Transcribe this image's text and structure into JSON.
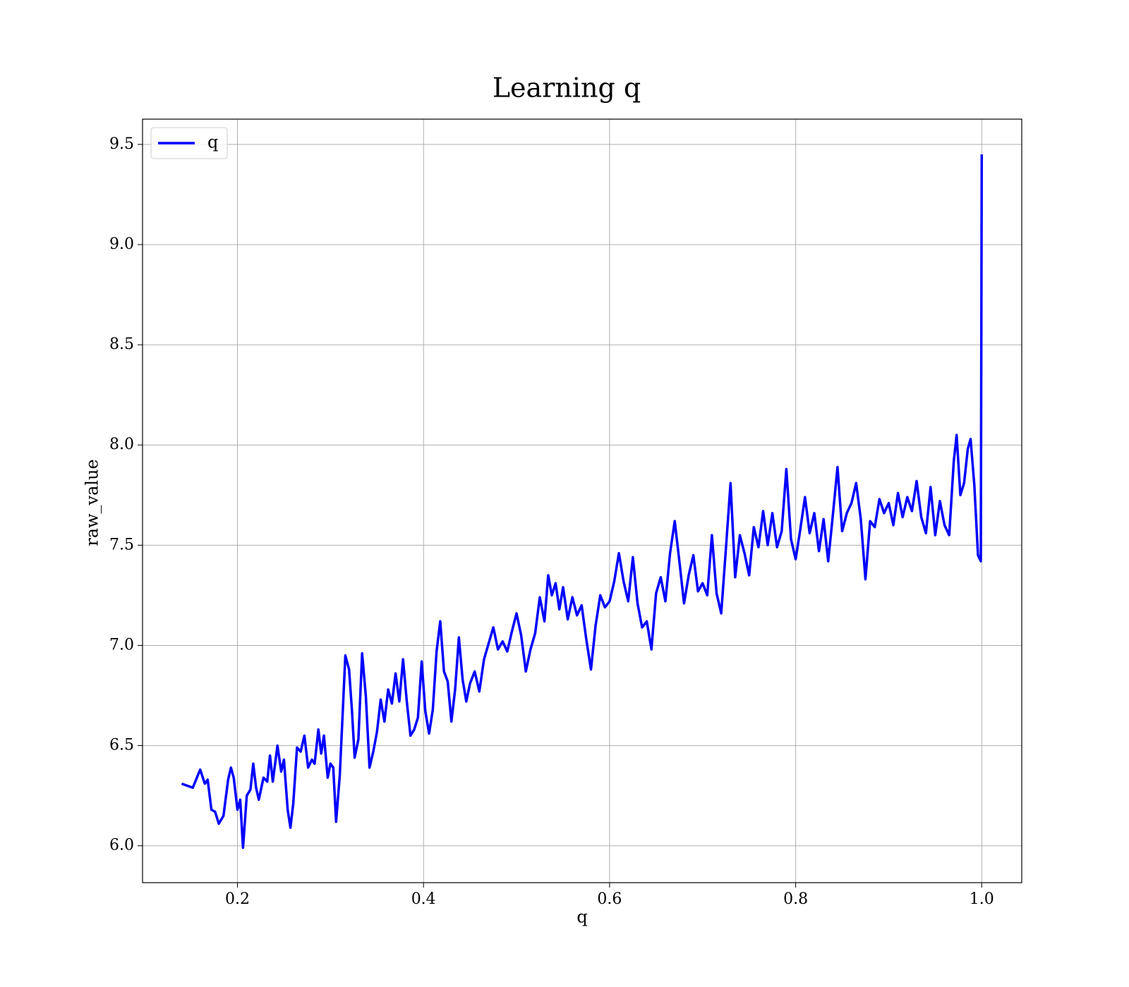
{
  "chart_data": {
    "type": "line",
    "title": "Learning q",
    "xlabel": "q",
    "ylabel": "raw_value",
    "xlim": [
      0.098,
      1.043
    ],
    "ylim": [
      5.816,
      9.626
    ],
    "xticks": [
      {
        "value": 0.2,
        "label": "0.2"
      },
      {
        "value": 0.4,
        "label": "0.4"
      },
      {
        "value": 0.6,
        "label": "0.6"
      },
      {
        "value": 0.8,
        "label": "0.8"
      },
      {
        "value": 1.0,
        "label": "1.0"
      }
    ],
    "yticks": [
      {
        "value": 6.0,
        "label": "6.0"
      },
      6.5,
      {
        "value": 7.0,
        "label": "7.0"
      },
      7.5,
      {
        "value": 8.0,
        "label": "8.0"
      },
      8.5,
      {
        "value": 9.0,
        "label": "9.0"
      },
      9.5
    ],
    "grid": true,
    "legend": "upper left",
    "x": [
      0.14,
      0.152,
      0.16,
      0.165,
      0.168,
      0.172,
      0.176,
      0.18,
      0.185,
      0.19,
      0.193,
      0.196,
      0.2,
      0.203,
      0.206,
      0.21,
      0.214,
      0.217,
      0.22,
      0.223,
      0.228,
      0.232,
      0.235,
      0.238,
      0.243,
      0.247,
      0.25,
      0.254,
      0.257,
      0.26,
      0.264,
      0.268,
      0.272,
      0.276,
      0.28,
      0.283,
      0.287,
      0.29,
      0.293,
      0.297,
      0.3,
      0.303,
      0.306,
      0.31,
      0.313,
      0.316,
      0.32,
      0.323,
      0.326,
      0.33,
      0.334,
      0.338,
      0.342,
      0.346,
      0.35,
      0.354,
      0.358,
      0.362,
      0.366,
      0.37,
      0.374,
      0.378,
      0.382,
      0.386,
      0.39,
      0.394,
      0.398,
      0.402,
      0.406,
      0.41,
      0.414,
      0.418,
      0.422,
      0.426,
      0.43,
      0.434,
      0.438,
      0.442,
      0.446,
      0.45,
      0.455,
      0.46,
      0.465,
      0.47,
      0.475,
      0.48,
      0.485,
      0.49,
      0.495,
      0.5,
      0.505,
      0.51,
      0.515,
      0.52,
      0.525,
      0.53,
      0.534,
      0.538,
      0.542,
      0.546,
      0.55,
      0.555,
      0.56,
      0.565,
      0.57,
      0.575,
      0.58,
      0.585,
      0.59,
      0.595,
      0.6,
      0.605,
      0.61,
      0.615,
      0.62,
      0.625,
      0.63,
      0.635,
      0.64,
      0.645,
      0.65,
      0.655,
      0.66,
      0.665,
      0.67,
      0.675,
      0.68,
      0.685,
      0.69,
      0.695,
      0.7,
      0.705,
      0.71,
      0.715,
      0.72,
      0.725,
      0.73,
      0.735,
      0.74,
      0.745,
      0.75,
      0.755,
      0.76,
      0.765,
      0.77,
      0.775,
      0.78,
      0.785,
      0.79,
      0.795,
      0.8,
      0.805,
      0.81,
      0.815,
      0.82,
      0.825,
      0.83,
      0.835,
      0.84,
      0.845,
      0.85,
      0.855,
      0.86,
      0.865,
      0.87,
      0.875,
      0.88,
      0.885,
      0.89,
      0.895,
      0.9,
      0.905,
      0.91,
      0.915,
      0.92,
      0.925,
      0.93,
      0.935,
      0.94,
      0.945,
      0.95,
      0.955,
      0.96,
      0.965,
      0.97,
      0.973,
      0.977,
      0.981,
      0.985,
      0.988,
      0.992,
      0.996,
      0.999,
      1.0
    ],
    "series": [
      {
        "name": "q",
        "color": "#0000ff",
        "values": [
          6.31,
          6.29,
          6.38,
          6.31,
          6.33,
          6.18,
          6.17,
          6.11,
          6.15,
          6.33,
          6.39,
          6.34,
          6.18,
          6.23,
          5.99,
          6.25,
          6.28,
          6.41,
          6.29,
          6.23,
          6.34,
          6.32,
          6.45,
          6.32,
          6.5,
          6.37,
          6.43,
          6.18,
          6.09,
          6.21,
          6.49,
          6.47,
          6.55,
          6.39,
          6.43,
          6.41,
          6.58,
          6.46,
          6.55,
          6.34,
          6.41,
          6.39,
          6.12,
          6.35,
          6.65,
          6.95,
          6.88,
          6.68,
          6.44,
          6.53,
          6.96,
          6.75,
          6.39,
          6.47,
          6.57,
          6.73,
          6.62,
          6.78,
          6.71,
          6.86,
          6.72,
          6.93,
          6.72,
          6.55,
          6.58,
          6.64,
          6.92,
          6.67,
          6.56,
          6.68,
          6.97,
          7.12,
          6.87,
          6.82,
          6.62,
          6.78,
          7.04,
          6.83,
          6.72,
          6.81,
          6.87,
          6.77,
          6.93,
          7.01,
          7.09,
          6.98,
          7.02,
          6.97,
          7.07,
          7.16,
          7.05,
          6.87,
          6.98,
          7.06,
          7.24,
          7.12,
          7.35,
          7.25,
          7.31,
          7.18,
          7.29,
          7.13,
          7.24,
          7.15,
          7.2,
          7.03,
          6.88,
          7.1,
          7.25,
          7.19,
          7.22,
          7.32,
          7.46,
          7.32,
          7.22,
          7.44,
          7.21,
          7.09,
          7.12,
          6.98,
          7.26,
          7.34,
          7.22,
          7.46,
          7.62,
          7.42,
          7.21,
          7.35,
          7.45,
          7.27,
          7.31,
          7.25,
          7.55,
          7.26,
          7.16,
          7.48,
          7.81,
          7.34,
          7.55,
          7.46,
          7.35,
          7.59,
          7.49,
          7.67,
          7.5,
          7.66,
          7.49,
          7.57,
          7.88,
          7.53,
          7.43,
          7.58,
          7.74,
          7.56,
          7.66,
          7.47,
          7.63,
          7.42,
          7.65,
          7.89,
          7.57,
          7.66,
          7.71,
          7.81,
          7.63,
          7.33,
          7.62,
          7.59,
          7.73,
          7.66,
          7.71,
          7.6,
          7.76,
          7.64,
          7.74,
          7.67,
          7.82,
          7.64,
          7.56,
          7.79,
          7.55,
          7.72,
          7.6,
          7.55,
          7.92,
          8.05,
          7.75,
          7.81,
          7.98,
          8.03,
          7.8,
          7.45,
          7.42,
          9.45
        ]
      }
    ]
  }
}
